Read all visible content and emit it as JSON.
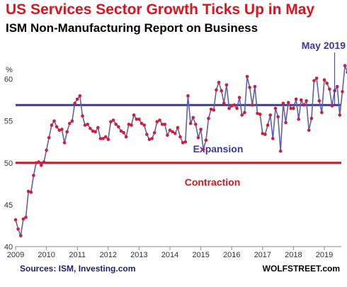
{
  "chart_data": {
    "type": "line",
    "title": "US Services Sector Growth Ticks Up in May",
    "subtitle": "ISM Non-Manufacturing Report on Business",
    "ylabel": "%",
    "xlabel": "",
    "ylim": [
      40,
      62.5
    ],
    "xlim": [
      2009.0,
      2019.55
    ],
    "yticks": [
      40,
      45,
      50,
      55,
      60
    ],
    "xticks": [
      "2009",
      "2010",
      "2011",
      "2012",
      "2013",
      "2014",
      "2015",
      "2016",
      "2017",
      "2018",
      "2019"
    ],
    "grid": false,
    "series_color": "#5f5fae",
    "marker_color": "#cf1c3f",
    "reference_lines": [
      {
        "value": 56.9,
        "label": "Expansion",
        "color": "#3a3a9e"
      },
      {
        "value": 50,
        "label": "Contraction",
        "color": "#e0121d"
      }
    ],
    "annotation": {
      "label": "May 2019",
      "at": "2019-05",
      "value": 56.9
    },
    "source": "Sources: ISM, Investing.com",
    "brand": "WOLFSTREET.com",
    "series": [
      {
        "start": "2009-01",
        "frequency": "monthly",
        "values": [
          43.2,
          42.1,
          41.3,
          43.3,
          43.5,
          46.6,
          46.5,
          48.5,
          50.0,
          50.1,
          49.7,
          50.1,
          51.5,
          53.0,
          54.5,
          55.0,
          54.3,
          53.9,
          54.0,
          52.4,
          53.7,
          54.7,
          55.0,
          57.1,
          57.6,
          58.0,
          55.6,
          54.5,
          54.6,
          54.1,
          53.8,
          53.7,
          54.2,
          52.9,
          52.9,
          53.1,
          52.8,
          54.9,
          55.1,
          54.6,
          54.3,
          53.8,
          53.6,
          53.1,
          54.6,
          54.5,
          55.7,
          55.2,
          55.2,
          54.7,
          54.5,
          53.4,
          52.8,
          52.9,
          53.6,
          54.9,
          55.1,
          54.6,
          54.6,
          53.3,
          53.9,
          53.7,
          53.5,
          54.2,
          53.1,
          52.4,
          52.5,
          58.0,
          54.7,
          55.4,
          54.6,
          53.0,
          54.0,
          51.6,
          52.7,
          55.3,
          56.4,
          56.3,
          58.7,
          59.6,
          58.6,
          57.1,
          59.3,
          56.5,
          56.8,
          56.9,
          56.5,
          57.8,
          55.7,
          56.0,
          60.3,
          59.0,
          56.9,
          59.1,
          55.9,
          55.8,
          53.5,
          53.4,
          54.5,
          55.7,
          52.9,
          56.5,
          55.5,
          51.4,
          57.1,
          54.8,
          57.2,
          56.5,
          56.5,
          57.6,
          55.2,
          57.5,
          56.9,
          57.4,
          53.9,
          55.3,
          59.8,
          60.1,
          57.4,
          56.0,
          59.9,
          59.5,
          58.8,
          56.8,
          58.6,
          59.1,
          55.7,
          58.5,
          61.6,
          60.8,
          60.7,
          57.6,
          56.7,
          59.7,
          56.1,
          55.5,
          56.9
        ]
      }
    ]
  }
}
